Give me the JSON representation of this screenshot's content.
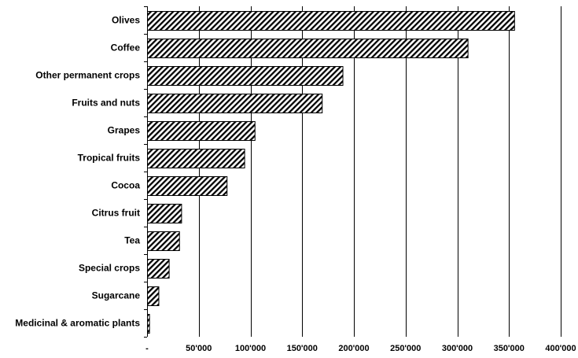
{
  "chart_data": {
    "type": "bar",
    "orientation": "horizontal",
    "title": "",
    "xlabel": "",
    "ylabel": "",
    "categories": [
      "Olives",
      "Coffee",
      "Other permanent crops",
      "Fruits and nuts",
      "Grapes",
      "Tropical fruits",
      "Cocoa",
      "Citrus fruit",
      "Tea",
      "Special crops",
      "Sugarcane",
      "Medicinal & aromatic plants"
    ],
    "values": [
      355000,
      310000,
      189000,
      169000,
      104000,
      94000,
      77000,
      33000,
      31000,
      21000,
      11000,
      2000
    ],
    "xlim": [
      0,
      400000
    ],
    "xticks": [
      0,
      50000,
      100000,
      150000,
      200000,
      250000,
      300000,
      350000,
      400000
    ],
    "xtick_labels": [
      "-",
      "50'000",
      "100'000",
      "150'000",
      "200'000",
      "250'000",
      "300'000",
      "350'000",
      "400'000"
    ],
    "grid": true,
    "bar_fill": "diagonal-hatch",
    "colors": {
      "bar_stroke": "#000000",
      "hatch": "#000000",
      "background": "#ffffff"
    }
  }
}
